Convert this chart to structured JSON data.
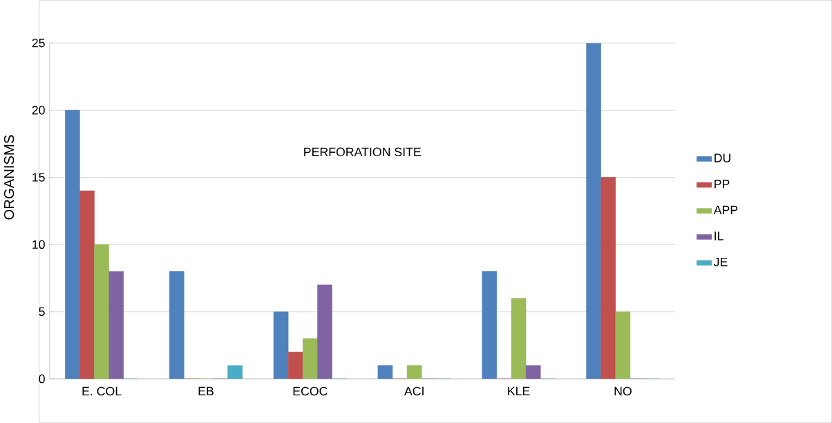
{
  "chart_data": {
    "type": "bar",
    "title": "PERFORATION SITE",
    "ylabel": "ORGANISMS",
    "categories": [
      "E. COL",
      "EB",
      "ECOC",
      "ACI",
      "KLE",
      "NO"
    ],
    "series": [
      {
        "name": "DU",
        "color": "#4f81bd",
        "values": [
          20,
          8,
          5,
          1,
          8,
          25
        ]
      },
      {
        "name": "PP",
        "color": "#c0504d",
        "values": [
          14,
          0,
          2,
          0,
          0,
          15
        ]
      },
      {
        "name": "APP",
        "color": "#9bbb59",
        "values": [
          10,
          0,
          3,
          1,
          6,
          5
        ]
      },
      {
        "name": "IL",
        "color": "#8064a2",
        "values": [
          8,
          0,
          7,
          0,
          1,
          0
        ]
      },
      {
        "name": "JE",
        "color": "#4bacc6",
        "values": [
          0,
          1,
          0,
          0,
          0,
          0
        ]
      }
    ],
    "ylim": [
      0,
      25
    ],
    "yticks": [
      0,
      5,
      10,
      15,
      20,
      25
    ],
    "grid": "y",
    "legend": "right"
  }
}
